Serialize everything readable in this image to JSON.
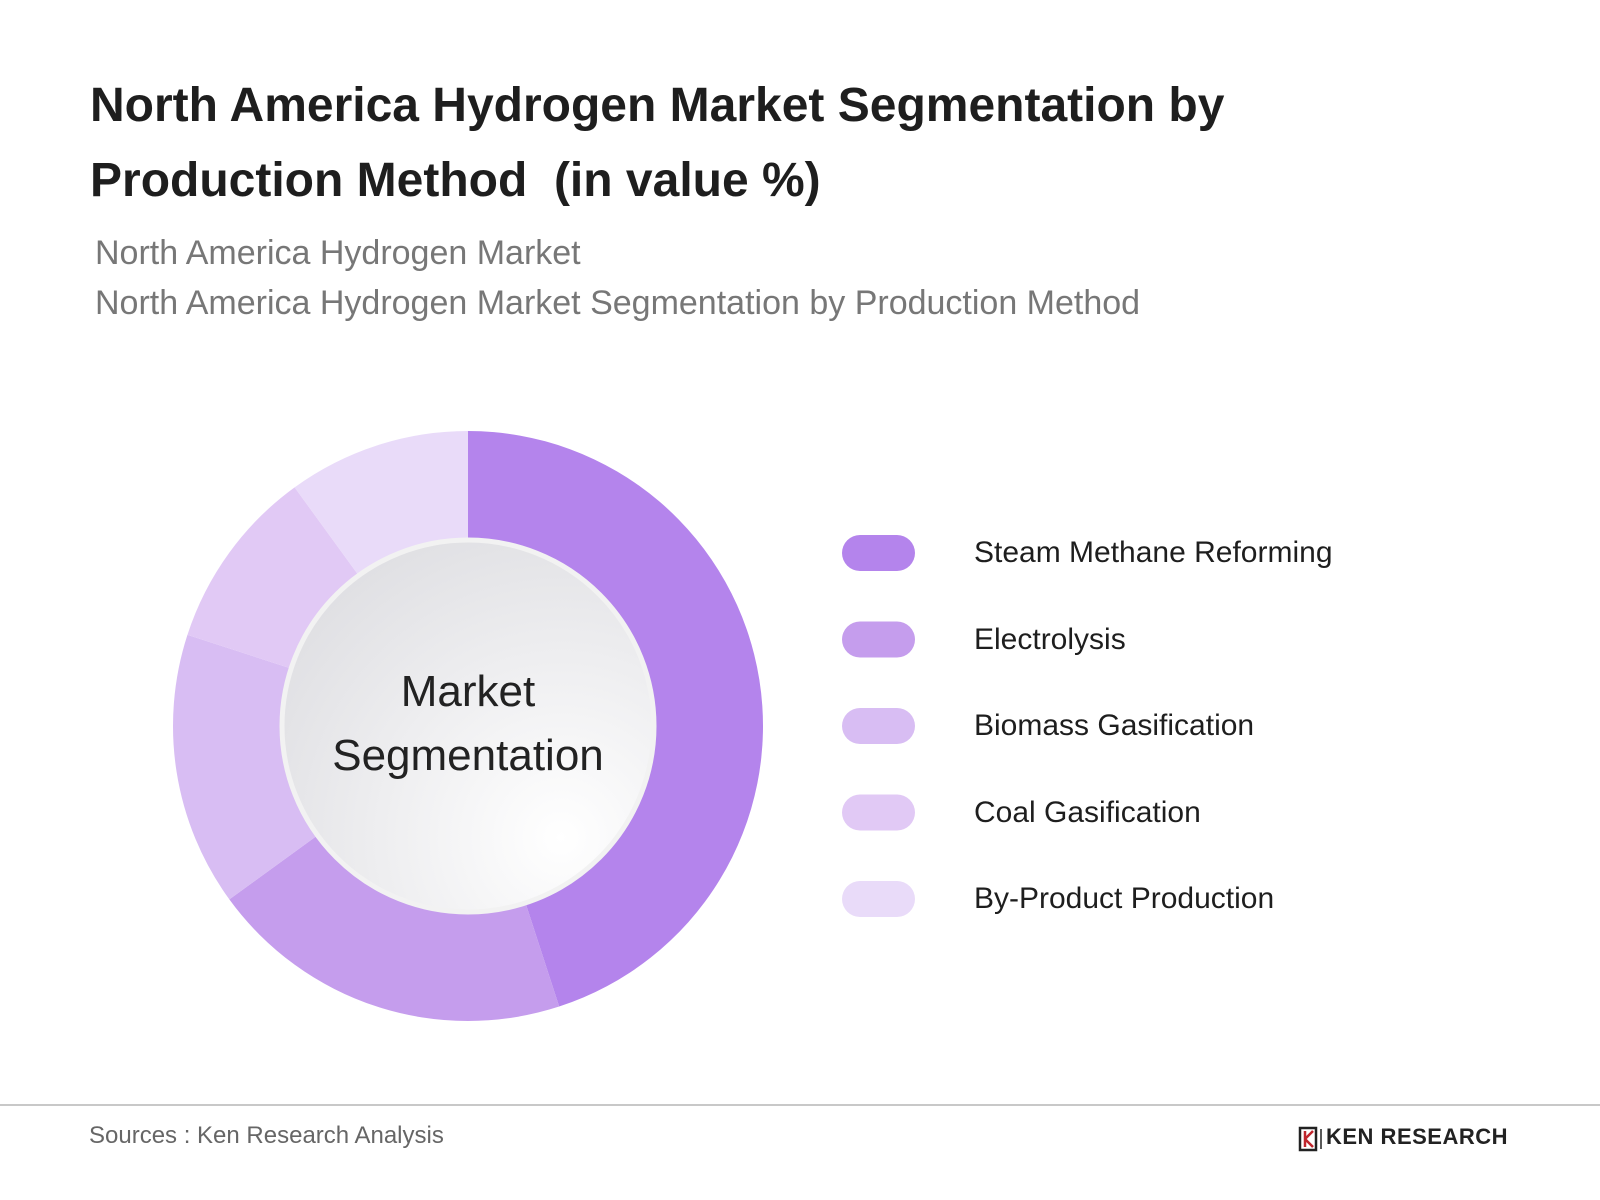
{
  "chart_data": {
    "type": "donut",
    "title": "North America Hydrogen Market Segmentation by Production Method  (in value %)",
    "subtitles": [
      "North America Hydrogen Market",
      "North America Hydrogen Market Segmentation by Production Method"
    ],
    "center_label": "Market Segmentation",
    "categories": [
      "Steam Methane Reforming",
      "Electrolysis",
      "Biomass Gasification",
      "Coal Gasification",
      "By-Product Production"
    ],
    "values": [
      45,
      20,
      15,
      10,
      10
    ],
    "colors": [
      "#b484ec",
      "#c59ded",
      "#d8bdf3",
      "#e1c9f5",
      "#e9dbf9"
    ],
    "legend": "right",
    "source": "Sources : Ken Research Analysis",
    "logo": "KEN RESEARCH"
  }
}
